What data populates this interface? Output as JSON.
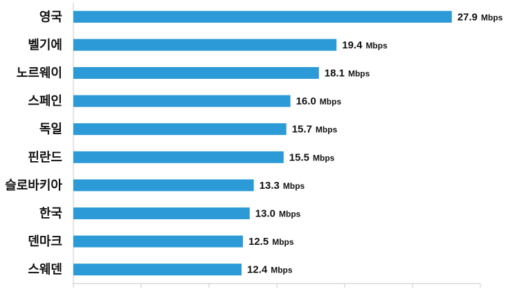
{
  "chart_data": {
    "type": "bar",
    "orientation": "horizontal",
    "categories": [
      "영국",
      "벨기에",
      "노르웨이",
      "스페인",
      "독일",
      "핀란드",
      "슬로바키아",
      "한국",
      "덴마크",
      "스웨덴"
    ],
    "values": [
      27.9,
      19.4,
      18.1,
      16.0,
      15.7,
      15.5,
      13.3,
      13.0,
      12.5,
      12.4
    ],
    "value_labels": [
      "27.9",
      "19.4",
      "18.1",
      "16.0",
      "15.7",
      "15.5",
      "13.3",
      "13.0",
      "12.5",
      "12.4"
    ],
    "unit": "Mbps",
    "xlim": [
      0,
      30
    ],
    "grid": false,
    "bar_color": "#2b9ad6"
  }
}
